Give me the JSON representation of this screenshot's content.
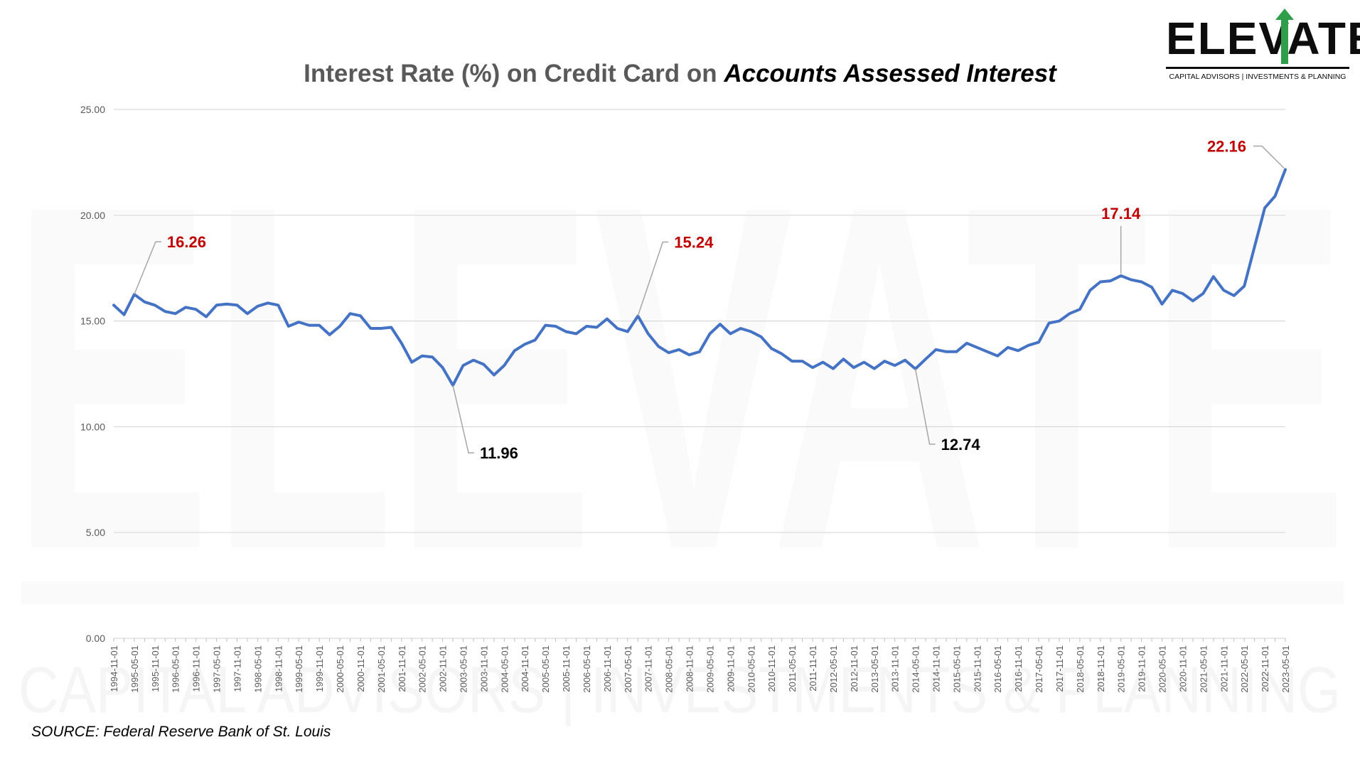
{
  "brand": {
    "name": "ELEVATE",
    "tagline": "CAPITAL ADVISORS | INVESTMENTS & PLANNING",
    "accent_color": "#2e9e4a",
    "watermark": "ELEVATE",
    "watermark_tagline": "CAPITAL ADVISORS | INVESTMENTS & PLANNING"
  },
  "title_main": "Interest Rate (%) on Credit Card on ",
  "title_emphasis": "Accounts Assessed Interest",
  "source": "SOURCE: Federal Reserve Bank of St. Louis",
  "colors": {
    "line": "#4472c4",
    "highlight": "#c00000",
    "label_dark": "#000000",
    "grid": "#d9d9d9",
    "axis_text": "#595959"
  },
  "chart_data": {
    "type": "line",
    "title": "Interest Rate (%) on Credit Card on Accounts Assessed Interest",
    "xlabel": "",
    "ylabel": "",
    "ylim": [
      0,
      25
    ],
    "yticks": [
      "0.00",
      "5.00",
      "10.00",
      "15.00",
      "20.00",
      "25.00"
    ],
    "grid": true,
    "legend": "none",
    "x": [
      "1994-11-01",
      "1995-02-01",
      "1995-05-01",
      "1995-08-01",
      "1995-11-01",
      "1996-02-01",
      "1996-05-01",
      "1996-08-01",
      "1996-11-01",
      "1997-02-01",
      "1997-05-01",
      "1997-08-01",
      "1997-11-01",
      "1998-02-01",
      "1998-05-01",
      "1998-08-01",
      "1998-11-01",
      "1999-02-01",
      "1999-05-01",
      "1999-08-01",
      "1999-11-01",
      "2000-02-01",
      "2000-05-01",
      "2000-08-01",
      "2000-11-01",
      "2001-02-01",
      "2001-05-01",
      "2001-08-01",
      "2001-11-01",
      "2002-02-01",
      "2002-05-01",
      "2002-08-01",
      "2002-11-01",
      "2003-02-01",
      "2003-05-01",
      "2003-08-01",
      "2003-11-01",
      "2004-02-01",
      "2004-05-01",
      "2004-08-01",
      "2004-11-01",
      "2005-02-01",
      "2005-05-01",
      "2005-08-01",
      "2005-11-01",
      "2006-02-01",
      "2006-05-01",
      "2006-08-01",
      "2006-11-01",
      "2007-02-01",
      "2007-05-01",
      "2007-08-01",
      "2007-11-01",
      "2008-02-01",
      "2008-05-01",
      "2008-08-01",
      "2008-11-01",
      "2009-02-01",
      "2009-05-01",
      "2009-08-01",
      "2009-11-01",
      "2010-02-01",
      "2010-05-01",
      "2010-08-01",
      "2010-11-01",
      "2011-02-01",
      "2011-05-01",
      "2011-08-01",
      "2011-11-01",
      "2012-02-01",
      "2012-05-01",
      "2012-08-01",
      "2012-11-01",
      "2013-02-01",
      "2013-05-01",
      "2013-08-01",
      "2013-11-01",
      "2014-02-01",
      "2014-05-01",
      "2014-08-01",
      "2014-11-01",
      "2015-02-01",
      "2015-05-01",
      "2015-08-01",
      "2015-11-01",
      "2016-02-01",
      "2016-05-01",
      "2016-08-01",
      "2016-11-01",
      "2017-02-01",
      "2017-05-01",
      "2017-08-01",
      "2017-11-01",
      "2018-02-01",
      "2018-05-01",
      "2018-08-01",
      "2018-11-01",
      "2019-02-01",
      "2019-05-01",
      "2019-08-01",
      "2019-11-01",
      "2020-02-01",
      "2020-05-01",
      "2020-08-01",
      "2020-11-01",
      "2021-02-01",
      "2021-05-01",
      "2021-08-01",
      "2021-11-01",
      "2022-02-01",
      "2022-05-01",
      "2022-08-01",
      "2022-11-01",
      "2023-02-01",
      "2023-05-01"
    ],
    "x_tick_labels": [
      "1994-11-01",
      "1995-05-01",
      "1995-11-01",
      "1996-05-01",
      "1996-11-01",
      "1997-05-01",
      "1997-11-01",
      "1998-05-01",
      "1998-11-01",
      "1999-05-01",
      "1999-11-01",
      "2000-05-01",
      "2000-11-01",
      "2001-05-01",
      "2001-11-01",
      "2002-05-01",
      "2002-11-01",
      "2003-05-01",
      "2003-11-01",
      "2004-05-01",
      "2004-11-01",
      "2005-05-01",
      "2005-11-01",
      "2006-05-01",
      "2006-11-01",
      "2007-05-01",
      "2007-11-01",
      "2008-05-01",
      "2008-11-01",
      "2009-05-01",
      "2009-11-01",
      "2010-05-01",
      "2010-11-01",
      "2011-05-01",
      "2011-11-01",
      "2012-05-01",
      "2012-11-01",
      "2013-05-01",
      "2013-11-01",
      "2014-05-01",
      "2014-11-01",
      "2015-05-01",
      "2015-11-01",
      "2016-05-01",
      "2016-11-01",
      "2017-05-01",
      "2017-11-01",
      "2018-05-01",
      "2018-11-01",
      "2019-05-01",
      "2019-11-01",
      "2020-05-01",
      "2020-11-01",
      "2021-05-01",
      "2021-11-01",
      "2022-05-01",
      "2022-11-01",
      "2023-05-01"
    ],
    "series": [
      {
        "values": [
          15.75,
          15.3,
          16.26,
          15.9,
          15.75,
          15.45,
          15.35,
          15.65,
          15.55,
          15.2,
          15.75,
          15.8,
          15.75,
          15.35,
          15.7,
          15.85,
          15.75,
          14.75,
          14.95,
          14.8,
          14.8,
          14.35,
          14.75,
          15.35,
          15.25,
          14.65,
          14.65,
          14.7,
          13.95,
          13.05,
          13.35,
          13.3,
          12.8,
          11.96,
          12.9,
          13.15,
          12.95,
          12.45,
          12.9,
          13.6,
          13.9,
          14.1,
          14.8,
          14.75,
          14.5,
          14.4,
          14.75,
          14.7,
          15.1,
          14.65,
          14.5,
          15.24,
          14.4,
          13.8,
          13.5,
          13.65,
          13.4,
          13.55,
          14.4,
          14.85,
          14.4,
          14.65,
          14.5,
          14.25,
          13.7,
          13.45,
          13.1,
          13.1,
          12.8,
          13.05,
          12.75,
          13.2,
          12.8,
          13.05,
          12.75,
          13.1,
          12.9,
          13.15,
          12.74,
          13.2,
          13.65,
          13.55,
          13.55,
          13.95,
          13.75,
          13.55,
          13.35,
          13.75,
          13.6,
          13.85,
          14.0,
          14.9,
          15.0,
          15.35,
          15.55,
          16.45,
          16.85,
          16.9,
          17.14,
          16.95,
          16.85,
          16.6,
          15.8,
          16.45,
          16.3,
          15.95,
          16.3,
          17.1,
          16.45,
          16.2,
          16.65,
          18.5,
          20.35,
          20.9,
          22.16
        ],
        "color": "#4472c4"
      }
    ],
    "annotations": [
      {
        "x": "1995-05-01",
        "value": 16.26,
        "text": "16.26",
        "color": "#c00000"
      },
      {
        "x": "2003-02-01",
        "value": 11.96,
        "text": "11.96",
        "color": "#000000"
      },
      {
        "x": "2007-08-01",
        "value": 15.24,
        "text": "15.24",
        "color": "#c00000"
      },
      {
        "x": "2014-05-01",
        "value": 12.74,
        "text": "12.74",
        "color": "#000000"
      },
      {
        "x": "2019-05-01",
        "value": 17.14,
        "text": "17.14",
        "color": "#c00000"
      },
      {
        "x": "2023-05-01",
        "value": 22.16,
        "text": "22.16",
        "color": "#c00000"
      }
    ]
  }
}
